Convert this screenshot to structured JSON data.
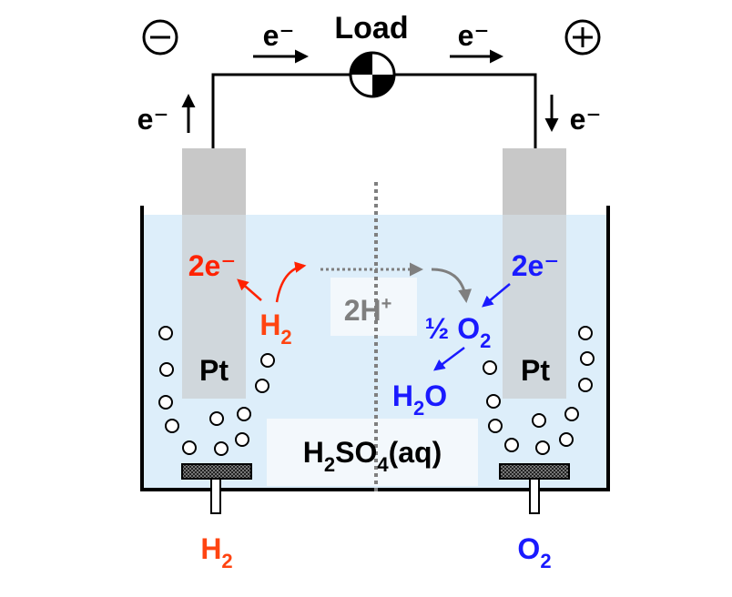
{
  "colors": {
    "red": "#ff2200",
    "orange_red": "#ff4411",
    "blue": "#1a1aff",
    "gray_arrow": "#7f7f7f",
    "electrolyte": "#ddeefa",
    "electrode": "#c8c8c8",
    "black": "#000000"
  },
  "icons": {
    "negative_terminal": "circled-minus-icon",
    "positive_terminal": "circled-plus-icon",
    "load": "load-symbol-icon"
  },
  "circuit": {
    "load_label": "Load",
    "electron_top_left": "e⁻",
    "electron_top_right": "e⁻",
    "electron_left": "e⁻",
    "electron_right": "e⁻"
  },
  "anode": {
    "electron_label": "2e⁻",
    "reactant_main": "H",
    "reactant_sub": "2",
    "electrode_label": "Pt"
  },
  "membrane": {
    "proton_main": "2H",
    "proton_sup": "+"
  },
  "cathode": {
    "electron_label": "2e⁻",
    "reactant_main": "½ O",
    "reactant_sub": "2",
    "product_main": "H",
    "product_sub": "2",
    "product_end": "O",
    "electrode_label": "Pt"
  },
  "electrolyte": {
    "p1": "H",
    "s1": "2",
    "p2": "SO",
    "s2": "4",
    "p3": "(aq)"
  },
  "inlets": {
    "left_main": "H",
    "left_sub": "2",
    "right_main": "O",
    "right_sub": "2"
  }
}
